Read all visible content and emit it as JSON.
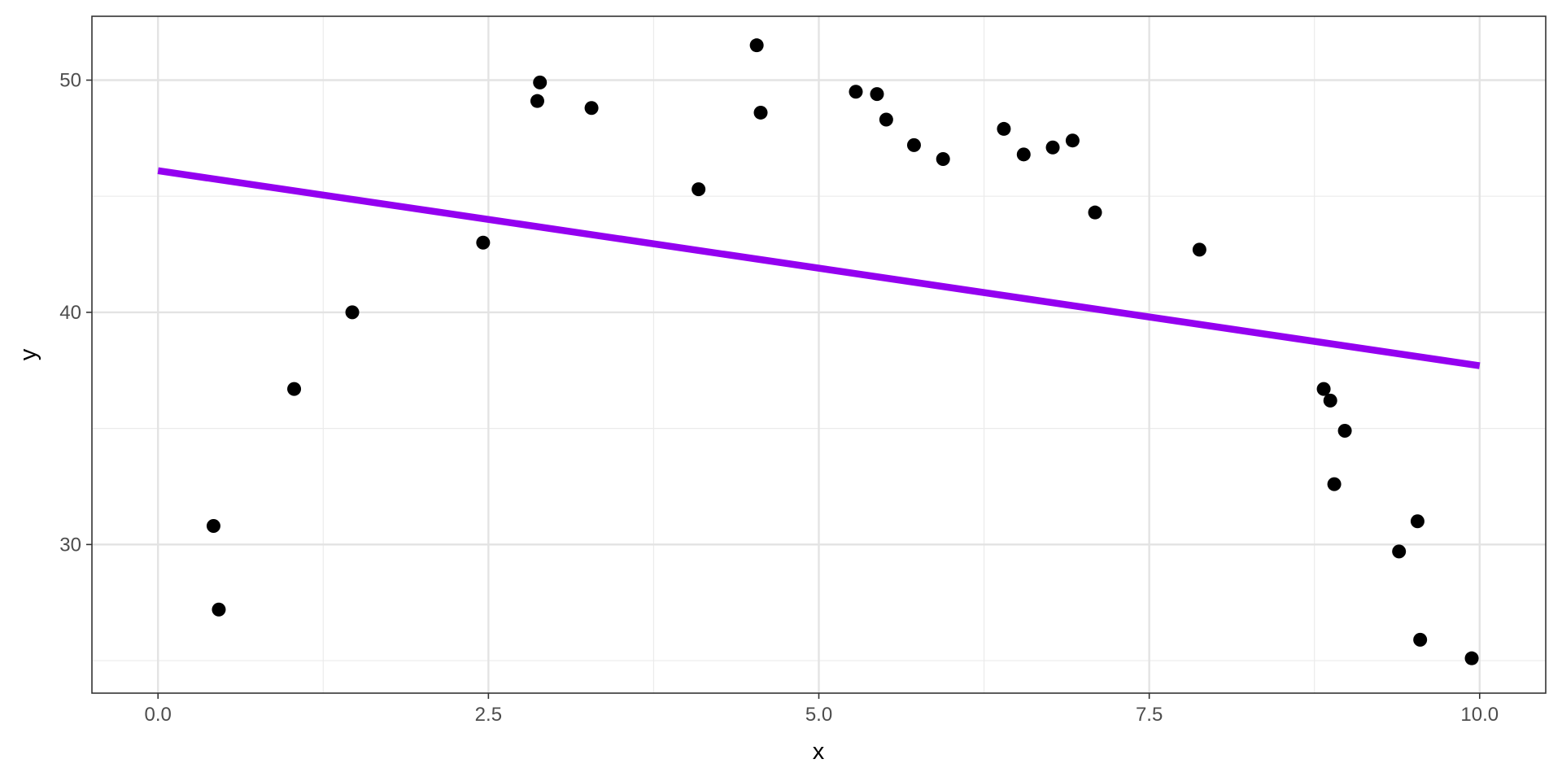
{
  "chart_data": {
    "type": "scatter",
    "title": "",
    "xlabel": "x",
    "ylabel": "y",
    "xlim": [
      -0.5,
      10.5
    ],
    "ylim": [
      23.6,
      52.75
    ],
    "x_ticks": [
      0.0,
      2.5,
      5.0,
      7.5,
      10.0
    ],
    "x_tick_labels": [
      "0.0",
      "2.5",
      "5.0",
      "7.5",
      "10.0"
    ],
    "x_minor_ticks": [
      1.25,
      3.75,
      6.25,
      8.75
    ],
    "y_ticks": [
      30,
      40,
      50
    ],
    "y_tick_labels": [
      "30",
      "40",
      "50"
    ],
    "y_minor_ticks": [
      25,
      35,
      45
    ],
    "grid": true,
    "legend": "none",
    "points": {
      "x": [
        0.42,
        0.46,
        1.03,
        1.47,
        2.46,
        2.87,
        2.89,
        3.28,
        4.09,
        4.53,
        4.56,
        5.28,
        5.44,
        5.51,
        5.72,
        5.94,
        6.4,
        6.55,
        6.77,
        6.92,
        7.09,
        7.88,
        8.82,
        8.87,
        8.9,
        8.98,
        9.39,
        9.53,
        9.55,
        9.94
      ],
      "y": [
        30.8,
        27.2,
        36.7,
        40.0,
        43.0,
        49.1,
        49.9,
        48.8,
        45.3,
        51.5,
        48.6,
        49.5,
        49.4,
        48.3,
        47.2,
        46.6,
        47.9,
        46.8,
        47.1,
        47.4,
        44.3,
        42.7,
        36.7,
        36.2,
        32.6,
        34.9,
        29.7,
        31.0,
        25.9,
        25.1
      ],
      "color": "#000000"
    },
    "fit_line": {
      "x": [
        0.0,
        10.0
      ],
      "y": [
        46.1,
        37.7
      ],
      "color": "#9400f0"
    }
  }
}
